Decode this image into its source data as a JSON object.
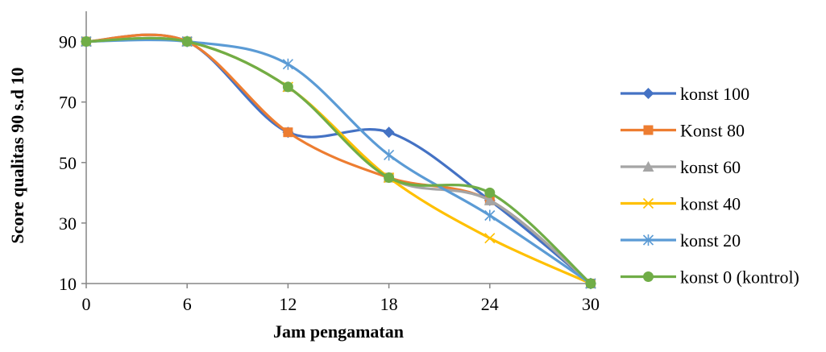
{
  "chart_data": {
    "type": "line",
    "title": "",
    "xlabel": "Jam pengamatan",
    "ylabel": "Score qualitas 90 s.d 10",
    "x": [
      0,
      6,
      12,
      18,
      24,
      30
    ],
    "x_ticks": [
      "0",
      "6",
      "12",
      "18",
      "24",
      "30"
    ],
    "y_ticks": [
      "10",
      "30",
      "50",
      "70",
      "90"
    ],
    "xlim": [
      0,
      30
    ],
    "ylim": [
      10,
      100
    ],
    "grid": false,
    "smooth": true,
    "legend_position": "right",
    "series": [
      {
        "name": "konst 100",
        "color": "#4472C4",
        "marker": "diamond",
        "values": [
          90,
          90,
          60,
          60,
          37.5,
          10
        ]
      },
      {
        "name": "Konst 80",
        "color": "#ED7D31",
        "marker": "square",
        "values": [
          90,
          90,
          60,
          45,
          37.5,
          10
        ]
      },
      {
        "name": "konst 60",
        "color": "#A5A5A5",
        "marker": "triangle",
        "values": [
          90,
          90,
          75,
          45,
          37.5,
          10
        ]
      },
      {
        "name": "konst 40",
        "color": "#FFC000",
        "marker": "x",
        "values": [
          90,
          90,
          75,
          45,
          25,
          10
        ]
      },
      {
        "name": "konst 20",
        "color": "#5B9BD5",
        "marker": "star",
        "values": [
          90,
          90,
          82.5,
          52.5,
          32.5,
          10
        ]
      },
      {
        "name": "konst 0 (kontrol)",
        "color": "#70AD47",
        "marker": "circle",
        "values": [
          90,
          90,
          75,
          45,
          40,
          10
        ]
      }
    ]
  }
}
